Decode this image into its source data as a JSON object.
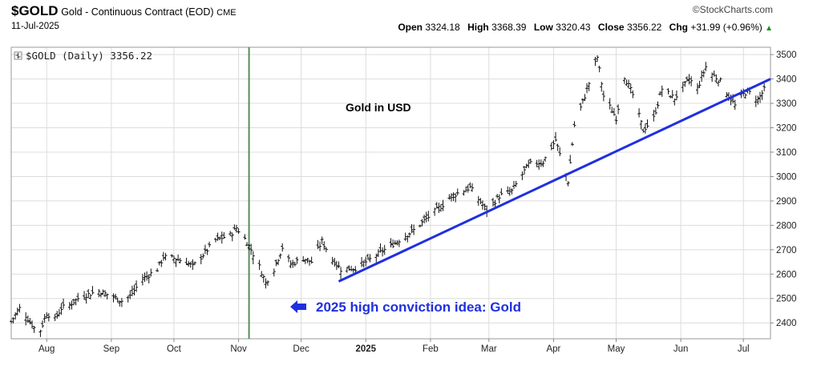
{
  "header": {
    "symbol": "$GOLD",
    "description": "Gold - Continuous Contract (EOD)",
    "exchange": "CME",
    "date": "11-Jul-2025",
    "brand": "©StockCharts.com",
    "open_label": "Open",
    "open": "3324.18",
    "high_label": "High",
    "high": "3368.39",
    "low_label": "Low",
    "low": "3320.43",
    "close_label": "Close",
    "close": "3356.22",
    "chg_label": "Chg",
    "chg": "+31.99 (+0.96%)",
    "up_arrow": "▲"
  },
  "chart_data": {
    "type": "ohlc",
    "legend": "$GOLD (Daily) 3356.22",
    "annotation_title": "Gold in USD",
    "callout": "2025 high conviction idea: Gold",
    "y_ticks": [
      2400,
      2500,
      2600,
      2700,
      2800,
      2900,
      3000,
      3100,
      3200,
      3300,
      3400,
      3500
    ],
    "ylim": [
      2335,
      3530
    ],
    "x_range": [
      "2024-07-15",
      "2025-07-14"
    ],
    "x_ticks": [
      {
        "label": "Aug",
        "date": "2024-08-01"
      },
      {
        "label": "Sep",
        "date": "2024-09-01"
      },
      {
        "label": "Oct",
        "date": "2024-10-01"
      },
      {
        "label": "Nov",
        "date": "2024-11-01"
      },
      {
        "label": "Dec",
        "date": "2024-12-01"
      },
      {
        "label": "2025",
        "date": "2025-01-01"
      },
      {
        "label": "Feb",
        "date": "2025-02-01"
      },
      {
        "label": "Mar",
        "date": "2025-03-01"
      },
      {
        "label": "Apr",
        "date": "2025-04-01"
      },
      {
        "label": "May",
        "date": "2025-05-01"
      },
      {
        "label": "Jun",
        "date": "2025-06-01"
      },
      {
        "label": "Jul",
        "date": "2025-07-01"
      }
    ],
    "vertical_marker_date": "2024-11-06",
    "trendline": {
      "start": [
        "2024-12-19",
        2570
      ],
      "end": [
        "2025-07-14",
        3400
      ]
    },
    "price_path": [
      [
        "2024-07-15",
        2405
      ],
      [
        "2024-07-19",
        2460
      ],
      [
        "2024-07-22",
        2430
      ],
      [
        "2024-07-26",
        2380
      ],
      [
        "2024-07-29",
        2370
      ],
      [
        "2024-08-01",
        2440
      ],
      [
        "2024-08-05",
        2415
      ],
      [
        "2024-08-08",
        2460
      ],
      [
        "2024-08-12",
        2475
      ],
      [
        "2024-08-16",
        2500
      ],
      [
        "2024-08-20",
        2515
      ],
      [
        "2024-08-26",
        2530
      ],
      [
        "2024-09-01",
        2510
      ],
      [
        "2024-09-06",
        2490
      ],
      [
        "2024-09-10",
        2510
      ],
      [
        "2024-09-16",
        2580
      ],
      [
        "2024-09-23",
        2620
      ],
      [
        "2024-09-26",
        2670
      ],
      [
        "2024-10-01",
        2665
      ],
      [
        "2024-10-07",
        2650
      ],
      [
        "2024-10-10",
        2630
      ],
      [
        "2024-10-16",
        2690
      ],
      [
        "2024-10-21",
        2740
      ],
      [
        "2024-10-28",
        2760
      ],
      [
        "2024-10-31",
        2790
      ],
      [
        "2024-11-04",
        2745
      ],
      [
        "2024-11-07",
        2700
      ],
      [
        "2024-11-11",
        2630
      ],
      [
        "2024-11-14",
        2565
      ],
      [
        "2024-11-18",
        2620
      ],
      [
        "2024-11-22",
        2710
      ],
      [
        "2024-11-26",
        2640
      ],
      [
        "2024-12-02",
        2665
      ],
      [
        "2024-12-06",
        2650
      ],
      [
        "2024-12-11",
        2735
      ],
      [
        "2024-12-16",
        2660
      ],
      [
        "2024-12-20",
        2620
      ],
      [
        "2024-12-27",
        2625
      ],
      [
        "2025-01-03",
        2660
      ],
      [
        "2025-01-10",
        2700
      ],
      [
        "2025-01-17",
        2740
      ],
      [
        "2025-01-24",
        2780
      ],
      [
        "2025-01-31",
        2835
      ],
      [
        "2025-02-07",
        2885
      ],
      [
        "2025-02-11",
        2920
      ],
      [
        "2025-02-20",
        2955
      ],
      [
        "2025-02-28",
        2860
      ],
      [
        "2025-03-06",
        2920
      ],
      [
        "2025-03-12",
        2940
      ],
      [
        "2025-03-20",
        3050
      ],
      [
        "2025-03-27",
        3060
      ],
      [
        "2025-04-02",
        3150
      ],
      [
        "2025-04-04",
        3090
      ],
      [
        "2025-04-08",
        2980
      ],
      [
        "2025-04-11",
        3210
      ],
      [
        "2025-04-16",
        3330
      ],
      [
        "2025-04-22",
        3490
      ],
      [
        "2025-04-25",
        3330
      ],
      [
        "2025-05-01",
        3240
      ],
      [
        "2025-05-05",
        3410
      ],
      [
        "2025-05-09",
        3335
      ],
      [
        "2025-05-14",
        3190
      ],
      [
        "2025-05-19",
        3240
      ],
      [
        "2025-05-23",
        3360
      ],
      [
        "2025-05-29",
        3320
      ],
      [
        "2025-06-05",
        3400
      ],
      [
        "2025-06-09",
        3360
      ],
      [
        "2025-06-13",
        3450
      ],
      [
        "2025-06-16",
        3420
      ],
      [
        "2025-06-20",
        3390
      ],
      [
        "2025-06-24",
        3330
      ],
      [
        "2025-06-27",
        3290
      ],
      [
        "2025-06-30",
        3330
      ],
      [
        "2025-07-03",
        3350
      ],
      [
        "2025-07-08",
        3315
      ],
      [
        "2025-07-11",
        3356
      ]
    ]
  }
}
